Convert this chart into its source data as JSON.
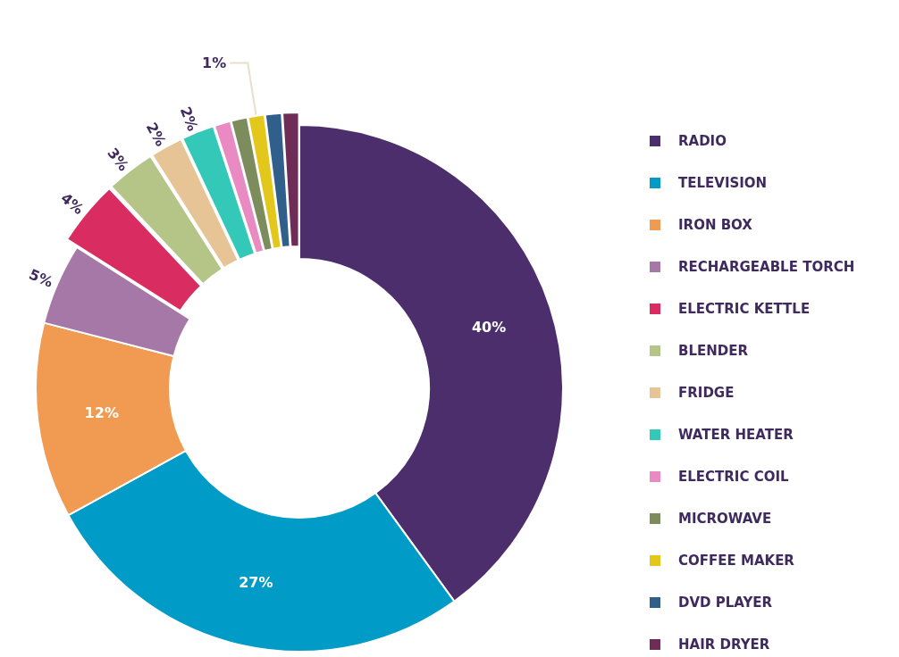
{
  "chart_data": {
    "type": "donut",
    "categories": [
      "RADIO",
      "TELEVISION",
      "IRON BOX",
      "RECHARGEABLE TORCH",
      "ELECTRIC KETTLE",
      "BLENDER",
      "FRIDGE",
      "WATER HEATER",
      "ELECTRIC COIL",
      "MICROWAVE",
      "COFFEE MAKER",
      "DVD PLAYER",
      "HAIR DRYER"
    ],
    "values": [
      40,
      27,
      12,
      5,
      4,
      3,
      2,
      2,
      1,
      1,
      1,
      1,
      1
    ],
    "colors": [
      "#4b2e6b",
      "#009bc6",
      "#f09a52",
      "#a678a8",
      "#d92d62",
      "#b5c487",
      "#e6c495",
      "#34c8b8",
      "#e98ac3",
      "#7d8c5c",
      "#e3c81b",
      "#2f5f8a",
      "#6e2d57"
    ],
    "value_labels": [
      "40%",
      "27%",
      "12%",
      "5%",
      "4%",
      "3%",
      "2%",
      "2%",
      null,
      null,
      "1%",
      null,
      null
    ],
    "legend": "right"
  }
}
